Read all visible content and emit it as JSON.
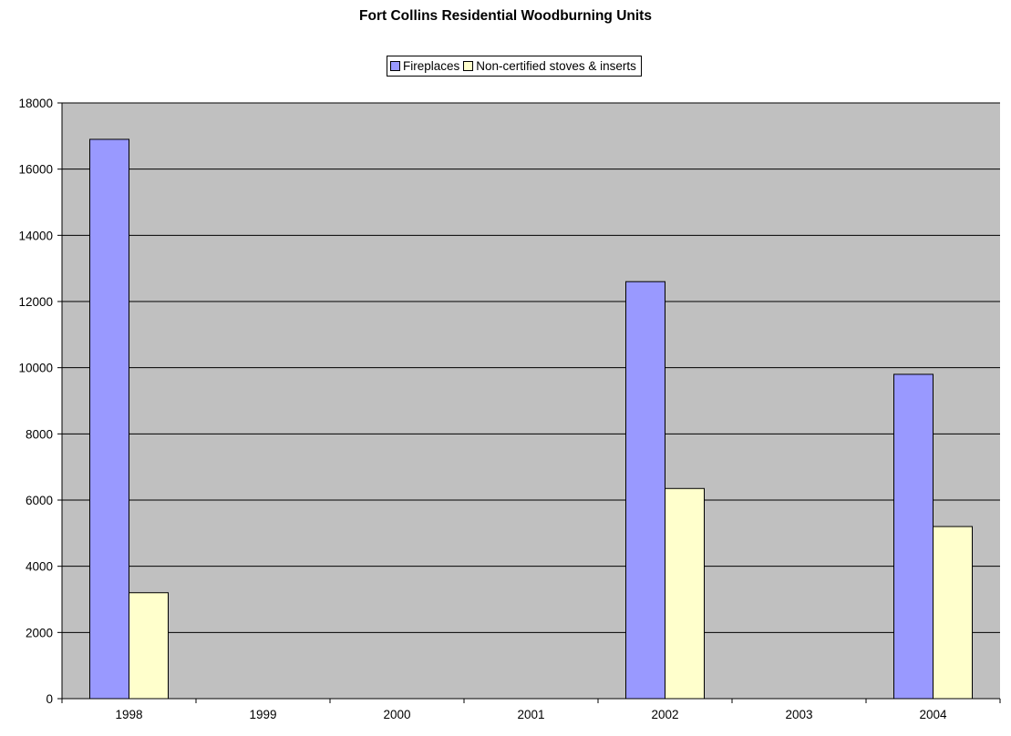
{
  "chart_data": {
    "type": "bar",
    "title": "Fort Collins Residential Woodburning Units",
    "xlabel": "",
    "ylabel": "",
    "categories": [
      "1998",
      "1999",
      "2000",
      "2001",
      "2002",
      "2003",
      "2004"
    ],
    "series": [
      {
        "name": "Fireplaces",
        "color": "#9999ff",
        "values": [
          16900,
          null,
          null,
          null,
          12600,
          null,
          9800
        ]
      },
      {
        "name": "Non-certified stoves & inserts",
        "color": "#ffffcc",
        "values": [
          3200,
          null,
          null,
          null,
          6350,
          null,
          5200
        ]
      }
    ],
    "ylim": [
      0,
      18000
    ],
    "yticks": [
      "0",
      "2000",
      "4000",
      "6000",
      "8000",
      "10000",
      "12000",
      "14000",
      "16000",
      "18000"
    ],
    "grid": true,
    "plot_background": "#c0c0c0",
    "legend_position": "top-center"
  }
}
